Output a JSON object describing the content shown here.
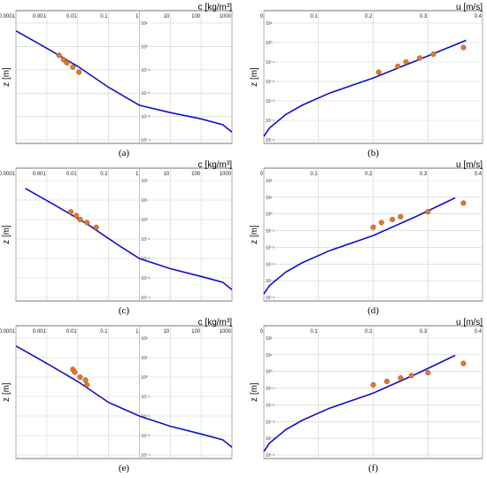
{
  "chart_data": [
    {
      "type": "line",
      "panel": "(a)",
      "xlabel": "c [kg/m³]",
      "ylabel": "z [m]",
      "x_scale": "log",
      "y_scale": "log",
      "xlim": [
        0.0001,
        1000
      ],
      "ylim": [
        0.0001,
        100
      ],
      "x_ticks": [
        "0.0001",
        "0.001",
        "0.01",
        "0.1",
        "1",
        "10",
        "100",
        "1000"
      ],
      "y_ticks": [
        "10¹",
        "10⁰",
        "10⁻¹",
        "10⁻²",
        "10⁻³",
        "10⁻⁴"
      ],
      "series": [
        {
          "kind": "line",
          "x": [
            0.0001,
            0.001,
            0.01,
            0.1,
            1,
            10,
            100,
            500,
            1000
          ],
          "y": [
            40,
            5,
            0.6,
            0.05,
            0.006,
            0.0025,
            0.0012,
            0.0006,
            0.00025
          ]
        },
        {
          "kind": "scatter",
          "x": [
            0.0025,
            0.0035,
            0.0045,
            0.007,
            0.011
          ],
          "y": [
            2.2,
            1.3,
            0.9,
            0.55,
            0.3
          ]
        }
      ]
    },
    {
      "type": "line",
      "panel": "(b)",
      "xlabel": "u [m/s]",
      "ylabel": "z [m]",
      "x_scale": "linear",
      "y_scale": "log",
      "xlim": [
        0,
        0.4
      ],
      "ylim": [
        0.0001,
        100
      ],
      "x_ticks": [
        "0",
        "0.1",
        "0.2",
        "0.3",
        "0.4"
      ],
      "y_ticks": [
        "10¹",
        "10⁰",
        "10⁻¹",
        "10⁻²",
        "10⁻³",
        "10⁻⁴",
        "10⁻⁵"
      ],
      "series": [
        {
          "kind": "line",
          "x": [
            0.0,
            0.01,
            0.04,
            0.07,
            0.12,
            0.2,
            0.28,
            0.37
          ],
          "y": [
            0.00015,
            0.0004,
            0.002,
            0.006,
            0.025,
            0.15,
            1.2,
            13
          ]
        },
        {
          "kind": "scatter",
          "x": [
            0.21,
            0.245,
            0.26,
            0.285,
            0.31,
            0.365
          ],
          "y": [
            0.3,
            0.6,
            1.0,
            1.6,
            2.5,
            5.5
          ]
        }
      ]
    },
    {
      "type": "line",
      "panel": "(c)",
      "xlabel": "c [kg/m³]",
      "ylabel": "z [m]",
      "x_scale": "log",
      "y_scale": "log",
      "xlim": [
        0.0001,
        1000
      ],
      "ylim": [
        0.0001,
        100
      ],
      "x_ticks": [
        "0.0001",
        "0.001",
        "0.01",
        "0.1",
        "1",
        "10",
        "100",
        "1000"
      ],
      "y_ticks": [
        "10²",
        "10¹",
        "10⁰",
        "10⁻¹",
        "10⁻²",
        "10⁻³",
        "10⁻⁴"
      ],
      "series": [
        {
          "kind": "line",
          "x": [
            0.0002,
            0.002,
            0.02,
            0.2,
            1,
            10,
            100,
            500,
            1000
          ],
          "y": [
            40,
            5,
            0.6,
            0.05,
            0.01,
            0.003,
            0.0012,
            0.0006,
            0.00025
          ]
        },
        {
          "kind": "scatter",
          "x": [
            0.006,
            0.009,
            0.012,
            0.02,
            0.04
          ],
          "y": [
            2.5,
            1.6,
            1.0,
            0.7,
            0.4
          ]
        }
      ]
    },
    {
      "type": "line",
      "panel": "(d)",
      "xlabel": "u [m/s]",
      "ylabel": "z [m]",
      "x_scale": "linear",
      "y_scale": "log",
      "xlim": [
        0,
        0.4
      ],
      "ylim": [
        0.0001,
        100
      ],
      "x_ticks": [
        "0",
        "0.1",
        "0.2",
        "0.3",
        "0.4"
      ],
      "y_ticks": [
        "10²",
        "10¹",
        "10⁰",
        "10⁻¹",
        "10⁻²",
        "10⁻³",
        "10⁻⁴",
        "10⁻⁵"
      ],
      "series": [
        {
          "kind": "line",
          "x": [
            0.0,
            0.01,
            0.04,
            0.07,
            0.12,
            0.2,
            0.28,
            0.35
          ],
          "y": [
            0.00015,
            0.0004,
            0.002,
            0.006,
            0.025,
            0.15,
            1.5,
            13
          ]
        },
        {
          "kind": "scatter",
          "x": [
            0.2,
            0.215,
            0.235,
            0.25,
            0.3,
            0.365
          ],
          "y": [
            0.4,
            0.7,
            1.0,
            1.4,
            2.5,
            7
          ]
        }
      ]
    },
    {
      "type": "line",
      "panel": "(e)",
      "xlabel": "c [kg/m³]",
      "ylabel": "z [m]",
      "x_scale": "log",
      "y_scale": "log",
      "xlim": [
        0.0001,
        1000
      ],
      "ylim": [
        0.0001,
        100
      ],
      "x_ticks": [
        "0.0001",
        "0.001",
        "0.01",
        "0.1",
        "1",
        "10",
        "100",
        "1000"
      ],
      "y_ticks": [
        "10²",
        "10¹",
        "10⁰",
        "10⁻¹",
        "10⁻²",
        "10⁻³",
        "10⁻⁴"
      ],
      "series": [
        {
          "kind": "line",
          "x": [
            0.0001,
            0.001,
            0.01,
            0.1,
            1,
            10,
            100,
            500,
            1000
          ],
          "y": [
            40,
            5,
            0.6,
            0.05,
            0.01,
            0.003,
            0.0012,
            0.0006,
            0.00025
          ]
        },
        {
          "kind": "scatter",
          "x": [
            0.007,
            0.008,
            0.012,
            0.018,
            0.02
          ],
          "y": [
            2.5,
            1.8,
            1.0,
            0.7,
            0.4
          ]
        }
      ]
    },
    {
      "type": "line",
      "panel": "(f)",
      "xlabel": "u [m/s]",
      "ylabel": "z [m]",
      "x_scale": "linear",
      "y_scale": "log",
      "xlim": [
        0,
        0.4
      ],
      "ylim": [
        0.0001,
        100
      ],
      "x_ticks": [
        "0",
        "0.1",
        "0.2",
        "0.3",
        "0.4"
      ],
      "y_ticks": [
        "10²",
        "10¹",
        "10⁰",
        "10⁻¹",
        "10⁻²",
        "10⁻³",
        "10⁻⁴",
        "10⁻⁵"
      ],
      "series": [
        {
          "kind": "line",
          "x": [
            0.0,
            0.01,
            0.04,
            0.07,
            0.12,
            0.2,
            0.28,
            0.35
          ],
          "y": [
            0.00015,
            0.0004,
            0.002,
            0.006,
            0.025,
            0.15,
            1.5,
            13
          ]
        },
        {
          "kind": "scatter",
          "x": [
            0.2,
            0.225,
            0.25,
            0.27,
            0.3,
            0.365
          ],
          "y": [
            0.4,
            0.6,
            0.9,
            1.2,
            1.7,
            5
          ]
        }
      ]
    }
  ],
  "colors": {
    "curve": "#1010c8",
    "points": "#e2772d",
    "grid": "#d0d0d0"
  }
}
